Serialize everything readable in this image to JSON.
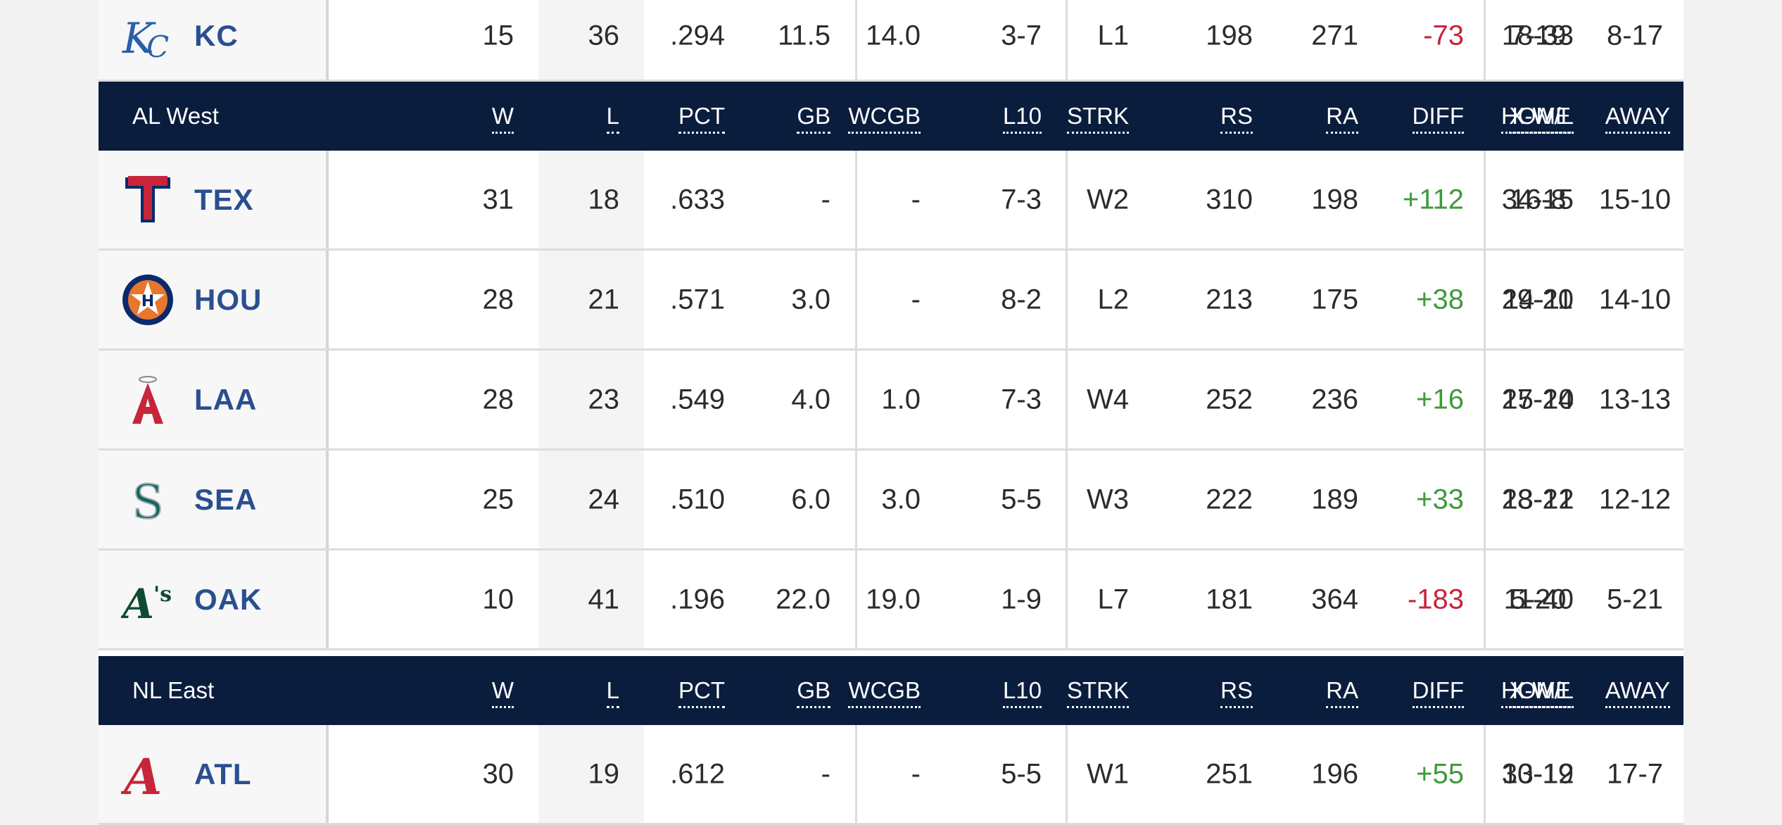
{
  "columns": [
    "W",
    "L",
    "PCT",
    "GB",
    "WCGB",
    "L10",
    "STRK",
    "RS",
    "RA",
    "DIFF",
    "X-W/L",
    "HOME",
    "AWAY"
  ],
  "colors": {
    "header_bg": "#0a1d3d",
    "team_abbr": "#2a4f8f",
    "positive_diff": "#3f9a3c",
    "negative_diff": "#c8243a"
  },
  "partial_top_row": {
    "team": "KC",
    "logo": "royals-logo",
    "w": "15",
    "l": "36",
    "pct": ".294",
    "gb": "11.5",
    "wcgb": "14.0",
    "l10": "3-7",
    "strk": "L1",
    "rs": "198",
    "ra": "271",
    "diff": "-73",
    "xwl": "18-33",
    "home": "7-19",
    "away": "8-17"
  },
  "al_west": {
    "division": "AL West",
    "teams": [
      {
        "team": "TEX",
        "logo": "rangers-logo",
        "w": "31",
        "l": "18",
        "pct": ".633",
        "gb": "-",
        "wcgb": "-",
        "l10": "7-3",
        "strk": "W2",
        "rs": "310",
        "ra": "198",
        "diff": "+112",
        "xwl": "34-15",
        "home": "16-8",
        "away": "15-10"
      },
      {
        "team": "HOU",
        "logo": "astros-logo",
        "w": "28",
        "l": "21",
        "pct": ".571",
        "gb": "3.0",
        "wcgb": "-",
        "l10": "8-2",
        "strk": "L2",
        "rs": "213",
        "ra": "175",
        "diff": "+38",
        "xwl": "29-20",
        "home": "14-11",
        "away": "14-10"
      },
      {
        "team": "LAA",
        "logo": "angels-logo",
        "w": "28",
        "l": "23",
        "pct": ".549",
        "gb": "4.0",
        "wcgb": "1.0",
        "l10": "7-3",
        "strk": "W4",
        "rs": "252",
        "ra": "236",
        "diff": "+16",
        "xwl": "27-24",
        "home": "15-10",
        "away": "13-13"
      },
      {
        "team": "SEA",
        "logo": "mariners-logo",
        "w": "25",
        "l": "24",
        "pct": ".510",
        "gb": "6.0",
        "wcgb": "3.0",
        "l10": "5-5",
        "strk": "W3",
        "rs": "222",
        "ra": "189",
        "diff": "+33",
        "xwl": "28-21",
        "home": "13-12",
        "away": "12-12"
      },
      {
        "team": "OAK",
        "logo": "athletics-logo",
        "w": "10",
        "l": "41",
        "pct": ".196",
        "gb": "22.0",
        "wcgb": "19.0",
        "l10": "1-9",
        "strk": "L7",
        "rs": "181",
        "ra": "364",
        "diff": "-183",
        "xwl": "11-40",
        "home": "5-20",
        "away": "5-21"
      }
    ]
  },
  "nl_east": {
    "division": "NL East",
    "teams": [
      {
        "team": "ATL",
        "logo": "braves-logo",
        "w": "30",
        "l": "19",
        "pct": ".612",
        "gb": "-",
        "wcgb": "-",
        "l10": "5-5",
        "strk": "W1",
        "rs": "251",
        "ra": "196",
        "diff": "+55",
        "xwl": "30-19",
        "home": "13-12",
        "away": "17-7"
      }
    ]
  }
}
